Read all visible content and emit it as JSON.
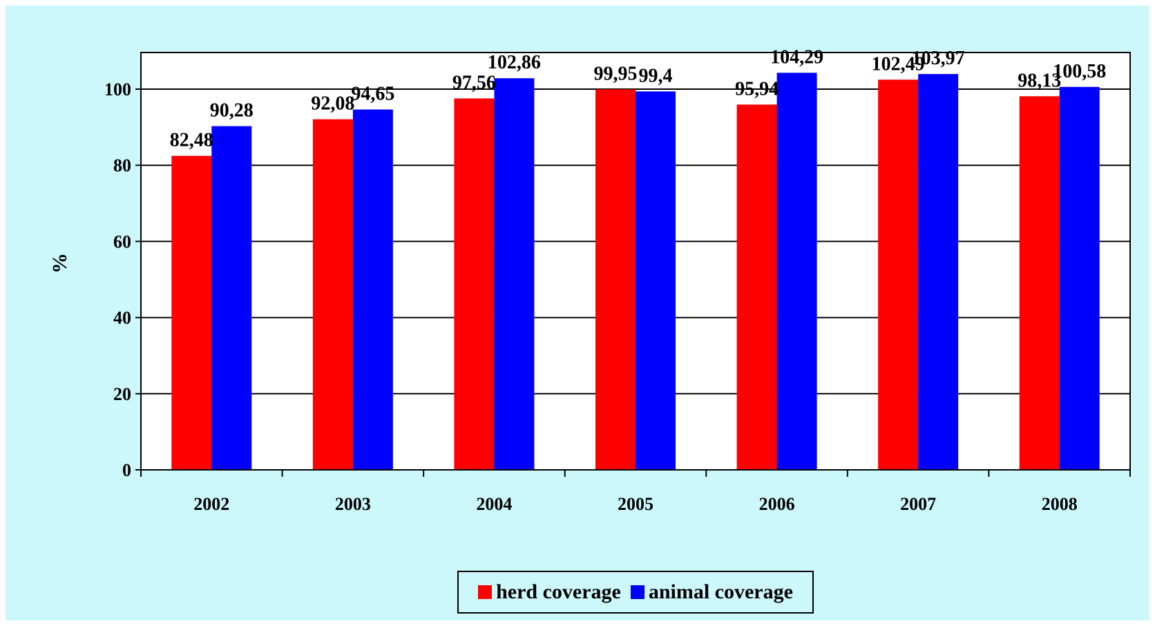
{
  "chart_data": {
    "type": "bar",
    "title": "",
    "xlabel": "",
    "ylabel": "%",
    "ylim": [
      0,
      110
    ],
    "yticks": [
      0,
      20,
      40,
      60,
      80,
      100
    ],
    "grid": true,
    "legend_position": "bottom",
    "categories": [
      "2002",
      "2003",
      "2004",
      "2005",
      "2006",
      "2007",
      "2008"
    ],
    "series": [
      {
        "name": "herd coverage",
        "color": "#ff0000",
        "values": [
          82.48,
          92.08,
          97.56,
          99.95,
          95.94,
          102.49,
          98.13
        ],
        "labels": [
          "82,48",
          "92,08",
          "97,56",
          "99,95",
          "95,94",
          "102,49",
          "98,13"
        ]
      },
      {
        "name": "animal coverage",
        "color": "#0000ff",
        "values": [
          90.28,
          94.65,
          102.86,
          99.4,
          104.29,
          103.97,
          100.58
        ],
        "labels": [
          "90,28",
          "94,65",
          "102,86",
          "99,4",
          "104,29",
          "103,97",
          "100,58"
        ]
      }
    ]
  }
}
